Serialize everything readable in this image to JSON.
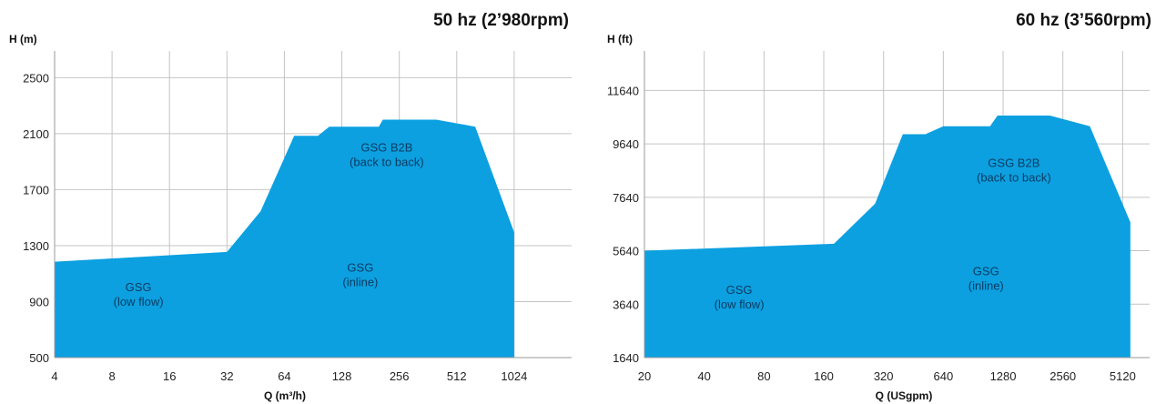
{
  "chart_data": [
    {
      "type": "area",
      "title": "50 hz (2’980rpm)",
      "ylabel": "H (m)",
      "xlabel": "Q (m³/h)",
      "x_scale": "log2",
      "xlim": [
        4,
        2048
      ],
      "ylim": [
        500,
        2600
      ],
      "xticks": [
        4,
        8,
        16,
        32,
        64,
        128,
        256,
        512,
        1024
      ],
      "yticks": [
        500,
        900,
        1300,
        1700,
        2100,
        2500
      ],
      "grid": true,
      "fill_color": "#0ca0e0",
      "envelope": {
        "x": [
          4,
          32,
          48,
          72,
          96,
          110,
          200,
          210,
          400,
          640,
          1024,
          1024
        ],
        "y": [
          1185,
          1255,
          1545,
          2085,
          2085,
          2150,
          2150,
          2200,
          2200,
          2150,
          1395,
          500
        ]
      },
      "regions": [
        {
          "label": "GSG",
          "sublabel": "(low flow)",
          "x": 11,
          "y": 960
        },
        {
          "label": "GSG",
          "sublabel": "(inline)",
          "x": 160,
          "y": 1100
        },
        {
          "label": "GSG B2B",
          "sublabel": "(back to back)",
          "x": 220,
          "y": 1960
        }
      ]
    },
    {
      "type": "area",
      "title": "60 hz (3’560rpm)",
      "ylabel": "H (ft)",
      "xlabel": "Q (USgpm)",
      "x_scale": "log2",
      "xlim": [
        20,
        7000
      ],
      "ylim": [
        1640,
        12640
      ],
      "xticks": [
        20,
        40,
        80,
        160,
        320,
        640,
        1280,
        2560,
        5120
      ],
      "yticks": [
        1640,
        3640,
        5640,
        7640,
        9640,
        11640
      ],
      "grid": true,
      "fill_color": "#0ca0e0",
      "envelope": {
        "x": [
          20,
          180,
          290,
          400,
          520,
          640,
          1100,
          1200,
          2200,
          3500,
          5600,
          5600
        ],
        "y": [
          5640,
          5900,
          7400,
          10000,
          10000,
          10300,
          10300,
          10700,
          10700,
          10300,
          6700,
          1640
        ]
      },
      "regions": [
        {
          "label": "GSG",
          "sublabel": "(low flow)",
          "x": 60,
          "y": 3950
        },
        {
          "label": "GSG",
          "sublabel": "(inline)",
          "x": 1050,
          "y": 4650
        },
        {
          "label": "GSG B2B",
          "sublabel": "(back to back)",
          "x": 1450,
          "y": 8700
        }
      ]
    }
  ]
}
